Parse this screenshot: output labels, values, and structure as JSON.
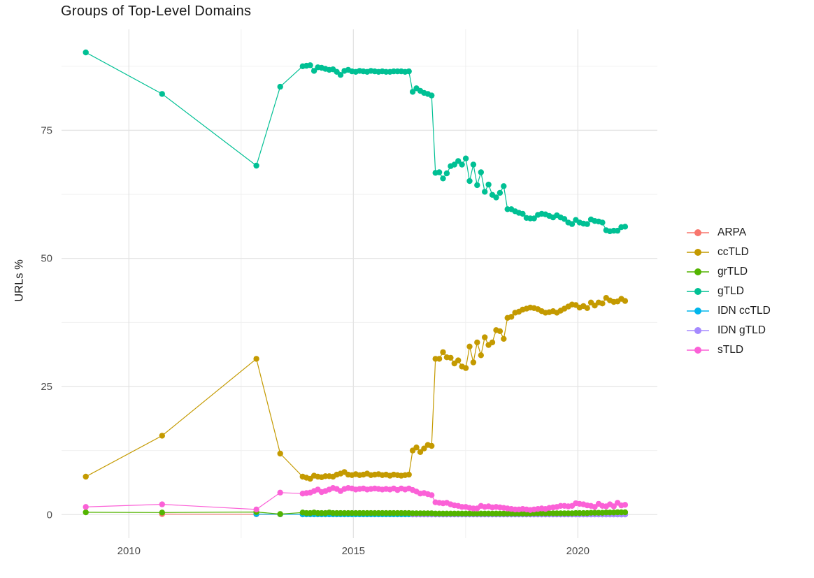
{
  "chart_data": {
    "type": "line",
    "title": "Groups of Top-Level Domains",
    "ylabel": "URLs %",
    "xlabel": "",
    "grid": true,
    "legend_position": "right",
    "xlim": [
      2008.5,
      2021.77
    ],
    "ylim": [
      -4.6,
      94.7
    ],
    "x_ticks": [
      {
        "label": "2010",
        "value": 2010
      },
      {
        "label": "2015",
        "value": 2015
      },
      {
        "label": "2020",
        "value": 2020
      }
    ],
    "x_minor": [
      2012.5,
      2017.5
    ],
    "y_ticks": [
      {
        "label": "0",
        "value": 0
      },
      {
        "label": "25",
        "value": 25
      },
      {
        "label": "50",
        "value": 50
      },
      {
        "label": "75",
        "value": 75
      }
    ],
    "y_minor": [
      12.5,
      37.5,
      62.5,
      87.5
    ],
    "draw_order": [
      0,
      1,
      4,
      5,
      2,
      3,
      6
    ],
    "series": [
      {
        "name": "ARPA",
        "color": "#F8766D",
        "sparse": [
          [
            2010.74,
            0.1
          ],
          [
            2012.84,
            0.06
          ],
          [
            2013.37,
            0.05
          ]
        ],
        "dense": {
          "x0": 2013.87,
          "dx": 0.0845,
          "n": 86,
          "const": 0.05
        }
      },
      {
        "name": "ccTLD",
        "color": "#C49A00",
        "sparse": [
          [
            2009.04,
            7.4
          ],
          [
            2010.74,
            15.4
          ],
          [
            2012.84,
            30.4
          ],
          [
            2013.37,
            11.9
          ]
        ],
        "dense": {
          "x0": 2013.87,
          "dx": 0.0845,
          "values": [
            7.4,
            7.2,
            7.0,
            7.6,
            7.4,
            7.3,
            7.5,
            7.5,
            7.4,
            7.8,
            8.0,
            8.3,
            7.8,
            7.7,
            7.9,
            7.7,
            7.8,
            8.0,
            7.7,
            7.8,
            7.9,
            7.7,
            7.8,
            7.6,
            7.8,
            7.7,
            7.6,
            7.7,
            7.8,
            12.5,
            13.1,
            12.2,
            12.9,
            13.6,
            13.4,
            30.4,
            30.4,
            31.7,
            30.7,
            30.6,
            29.5,
            30.1,
            28.9,
            28.6,
            32.8,
            29.7,
            33.6,
            31.1,
            34.6,
            33.1,
            33.6,
            36.0,
            35.8,
            34.3,
            38.4,
            38.6,
            39.4,
            39.6,
            40.0,
            40.2,
            40.4,
            40.3,
            40.1,
            39.7,
            39.4,
            39.5,
            39.7,
            39.4,
            39.8,
            40.2,
            40.6,
            41.0,
            40.9,
            40.4,
            40.7,
            40.3,
            41.4,
            40.8,
            41.4,
            41.2,
            42.3,
            41.8,
            41.5,
            41.6,
            42.1,
            41.7
          ]
        }
      },
      {
        "name": "grTLD",
        "color": "#53B400",
        "sparse": [
          [
            2009.04,
            0.45
          ],
          [
            2010.74,
            0.4
          ],
          [
            2012.84,
            0.5
          ],
          [
            2013.37,
            0.1
          ]
        ],
        "dense": {
          "x0": 2013.87,
          "dx": 0.0845,
          "values": [
            0.4,
            0.3,
            0.3,
            0.4,
            0.3,
            0.3,
            0.3,
            0.4,
            0.3,
            0.3,
            0.3,
            0.3,
            0.3,
            0.3,
            0.3,
            0.3,
            0.3,
            0.3,
            0.3,
            0.3,
            0.3,
            0.3,
            0.3,
            0.3,
            0.3,
            0.3,
            0.3,
            0.3,
            0.3,
            0.25,
            0.25,
            0.25,
            0.25,
            0.25,
            0.25,
            0.2,
            0.2,
            0.2,
            0.2,
            0.2,
            0.2,
            0.2,
            0.2,
            0.2,
            0.2,
            0.2,
            0.2,
            0.2,
            0.2,
            0.2,
            0.2,
            0.2,
            0.2,
            0.2,
            0.2,
            0.2,
            0.2,
            0.2,
            0.2,
            0.2,
            0.2,
            0.25,
            0.25,
            0.25,
            0.25,
            0.25,
            0.25,
            0.25,
            0.25,
            0.25,
            0.25,
            0.25,
            0.3,
            0.3,
            0.3,
            0.3,
            0.35,
            0.35,
            0.35,
            0.35,
            0.4,
            0.4,
            0.4,
            0.45,
            0.45,
            0.45
          ]
        }
      },
      {
        "name": "gTLD",
        "color": "#00C094",
        "sparse": [
          [
            2009.04,
            90.2
          ],
          [
            2010.74,
            82.1
          ],
          [
            2012.84,
            68.1
          ],
          [
            2013.37,
            83.5
          ]
        ],
        "dense": {
          "x0": 2013.87,
          "dx": 0.0845,
          "values": [
            87.5,
            87.6,
            87.7,
            86.6,
            87.3,
            87.2,
            87.0,
            86.8,
            86.9,
            86.4,
            85.8,
            86.6,
            86.8,
            86.5,
            86.4,
            86.6,
            86.5,
            86.4,
            86.6,
            86.5,
            86.4,
            86.5,
            86.4,
            86.4,
            86.5,
            86.5,
            86.5,
            86.4,
            86.5,
            82.5,
            83.2,
            82.7,
            82.3,
            82.1,
            81.8,
            66.7,
            66.8,
            65.6,
            66.6,
            68.0,
            68.3,
            69.0,
            68.3,
            69.5,
            65.1,
            68.3,
            64.3,
            66.8,
            63.0,
            64.4,
            62.4,
            61.9,
            62.8,
            64.1,
            59.6,
            59.6,
            59.2,
            58.9,
            58.7,
            57.9,
            57.8,
            57.8,
            58.5,
            58.7,
            58.6,
            58.3,
            58.0,
            58.4,
            58.0,
            57.7,
            57.0,
            56.7,
            57.5,
            57.0,
            56.8,
            56.7,
            57.6,
            57.3,
            57.2,
            57.0,
            55.5,
            55.3,
            55.4,
            55.4,
            56.1,
            56.2
          ]
        }
      },
      {
        "name": "IDN ccTLD",
        "color": "#00B6EB",
        "sparse": [
          [
            2012.84,
            0.1
          ],
          [
            2013.37,
            0.06
          ]
        ],
        "dense": {
          "x0": 2013.87,
          "dx": 0.0845,
          "n": 86,
          "const": 0.05
        }
      },
      {
        "name": "IDN gTLD",
        "color": "#A58AFF",
        "sparse": [],
        "dense": {
          "x0": 2016.32,
          "dx": 0.0845,
          "n": 57,
          "const": 0.03
        }
      },
      {
        "name": "sTLD",
        "color": "#FB61D7",
        "sparse": [
          [
            2009.04,
            1.5
          ],
          [
            2010.74,
            2.0
          ],
          [
            2012.84,
            1.0
          ],
          [
            2013.37,
            4.3
          ]
        ],
        "dense": {
          "x0": 2013.87,
          "dx": 0.0845,
          "values": [
            4.1,
            4.2,
            4.3,
            4.6,
            4.9,
            4.4,
            4.6,
            4.9,
            5.2,
            5.0,
            4.6,
            5.0,
            5.2,
            5.1,
            4.9,
            5.0,
            5.1,
            4.9,
            5.0,
            5.1,
            5.0,
            4.9,
            5.0,
            4.9,
            5.1,
            4.8,
            5.1,
            4.9,
            5.1,
            4.8,
            4.5,
            4.1,
            4.2,
            4.0,
            3.8,
            2.4,
            2.3,
            2.2,
            2.3,
            2.0,
            1.8,
            1.7,
            1.5,
            1.5,
            1.3,
            1.2,
            1.2,
            1.7,
            1.5,
            1.6,
            1.4,
            1.5,
            1.4,
            1.3,
            1.2,
            1.1,
            1.0,
            1.0,
            1.1,
            1.0,
            0.9,
            1.0,
            1.1,
            1.2,
            1.1,
            1.3,
            1.4,
            1.5,
            1.7,
            1.7,
            1.6,
            1.7,
            2.2,
            2.1,
            2.0,
            1.8,
            1.7,
            1.5,
            2.1,
            1.7,
            1.6,
            2.0,
            1.6,
            2.3,
            1.8,
            1.9
          ]
        }
      }
    ]
  }
}
